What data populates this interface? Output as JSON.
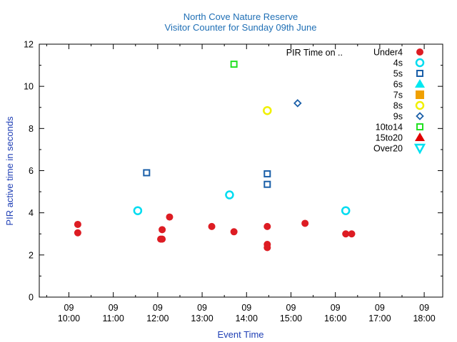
{
  "chart_data": {
    "type": "scatter",
    "title": "North Cove Nature Reserve",
    "subtitle": "Visitor Counter for Sunday 09th June",
    "xlabel": "Event Time",
    "ylabel": "PIR active time in seconds",
    "xlim": [
      "09:20",
      "18:25"
    ],
    "ylim": [
      0,
      12
    ],
    "x_ticks": [
      {
        "t": "10:00",
        "day": "09",
        "time": "10:00"
      },
      {
        "t": "11:00",
        "day": "09",
        "time": "11:00"
      },
      {
        "t": "12:00",
        "day": "09",
        "time": "12:00"
      },
      {
        "t": "13:00",
        "day": "09",
        "time": "13:00"
      },
      {
        "t": "14:00",
        "day": "09",
        "time": "14:00"
      },
      {
        "t": "15:00",
        "day": "09",
        "time": "15:00"
      },
      {
        "t": "16:00",
        "day": "09",
        "time": "16:00"
      },
      {
        "t": "17:00",
        "day": "09",
        "time": "17:00"
      },
      {
        "t": "18:00",
        "day": "09",
        "time": "18:00"
      }
    ],
    "y_ticks": [
      "0",
      "2",
      "4",
      "6",
      "8",
      "10",
      "12"
    ],
    "legend_title": "PIR Time on ..",
    "legend_position": "top-right",
    "series": [
      {
        "name": "Under4",
        "marker": "filled-circle",
        "color": "#dd1c23",
        "points": [
          {
            "x": "10:12",
            "y": 3.45
          },
          {
            "x": "10:12",
            "y": 3.05
          },
          {
            "x": "12:04",
            "y": 2.75
          },
          {
            "x": "12:06",
            "y": 2.75
          },
          {
            "x": "12:06",
            "y": 3.2
          },
          {
            "x": "12:16",
            "y": 3.8
          },
          {
            "x": "13:13",
            "y": 3.35
          },
          {
            "x": "13:43",
            "y": 3.1
          },
          {
            "x": "14:28",
            "y": 3.35
          },
          {
            "x": "14:28",
            "y": 2.5
          },
          {
            "x": "14:28",
            "y": 2.35
          },
          {
            "x": "15:19",
            "y": 3.5
          },
          {
            "x": "16:14",
            "y": 3.0
          },
          {
            "x": "16:22",
            "y": 3.0
          }
        ]
      },
      {
        "name": "4s",
        "marker": "open-circle",
        "color": "#00dcf0",
        "points": [
          {
            "x": "11:33",
            "y": 4.1
          },
          {
            "x": "13:37",
            "y": 4.85
          },
          {
            "x": "16:14",
            "y": 4.1
          }
        ]
      },
      {
        "name": "5s",
        "marker": "open-square",
        "color": "#1a5fa8",
        "points": [
          {
            "x": "11:45",
            "y": 5.9
          },
          {
            "x": "14:28",
            "y": 5.85
          },
          {
            "x": "14:28",
            "y": 5.35
          }
        ]
      },
      {
        "name": "6s",
        "marker": "filled-triangle",
        "color": "#00e8f0",
        "points": []
      },
      {
        "name": "7s",
        "marker": "filled-square",
        "color": "#f0a000",
        "points": []
      },
      {
        "name": "8s",
        "marker": "open-circle",
        "color": "#f0f000",
        "points": [
          {
            "x": "14:28",
            "y": 8.85
          }
        ]
      },
      {
        "name": "9s",
        "marker": "open-diamond",
        "color": "#1a5fa8",
        "points": [
          {
            "x": "15:09",
            "y": 9.2
          }
        ]
      },
      {
        "name": "10to14",
        "marker": "open-square",
        "color": "#22e022",
        "points": [
          {
            "x": "13:43",
            "y": 11.05
          }
        ]
      },
      {
        "name": "15to20",
        "marker": "filled-triangle",
        "color": "#e00000",
        "points": []
      },
      {
        "name": "Over20",
        "marker": "open-triangle-down",
        "color": "#00e0f0",
        "points": []
      }
    ]
  }
}
